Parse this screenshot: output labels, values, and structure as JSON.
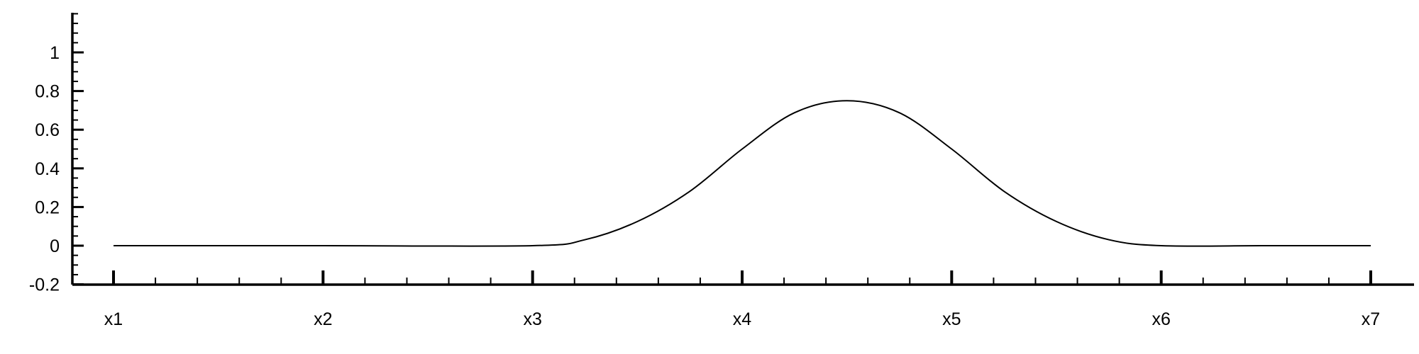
{
  "chart_data": {
    "type": "line",
    "title": "",
    "xlabel": "",
    "ylabel": "",
    "xlim": [
      1,
      7
    ],
    "ylim": [
      -0.2,
      1.2
    ],
    "grid": false,
    "legend": "none",
    "x_ticks": [
      {
        "value": 1,
        "label": "x1"
      },
      {
        "value": 2,
        "label": "x2"
      },
      {
        "value": 3,
        "label": "x3"
      },
      {
        "value": 4,
        "label": "x4"
      },
      {
        "value": 5,
        "label": "x5"
      },
      {
        "value": 6,
        "label": "x6"
      },
      {
        "value": 7,
        "label": "x7"
      }
    ],
    "x_minor_per_major": 5,
    "y_ticks": [
      {
        "value": -0.2,
        "label": "-0.2"
      },
      {
        "value": 0,
        "label": "0"
      },
      {
        "value": 0.2,
        "label": "0.2"
      },
      {
        "value": 0.4,
        "label": "0.4"
      },
      {
        "value": 0.6,
        "label": "0.6"
      },
      {
        "value": 0.8,
        "label": "0.8"
      },
      {
        "value": 1,
        "label": "1"
      }
    ],
    "y_minor_step": 0.05,
    "series": [
      {
        "color": "#000000",
        "x": [
          1,
          2,
          3,
          3.25,
          3.5,
          3.75,
          4,
          4.25,
          4.5,
          4.75,
          5,
          5.25,
          5.5,
          5.75,
          6,
          6.5,
          7
        ],
        "y": [
          0,
          0,
          0,
          0.031,
          0.125,
          0.281,
          0.5,
          0.688,
          0.75,
          0.688,
          0.5,
          0.281,
          0.125,
          0.031,
          0,
          0,
          0
        ]
      }
    ]
  }
}
